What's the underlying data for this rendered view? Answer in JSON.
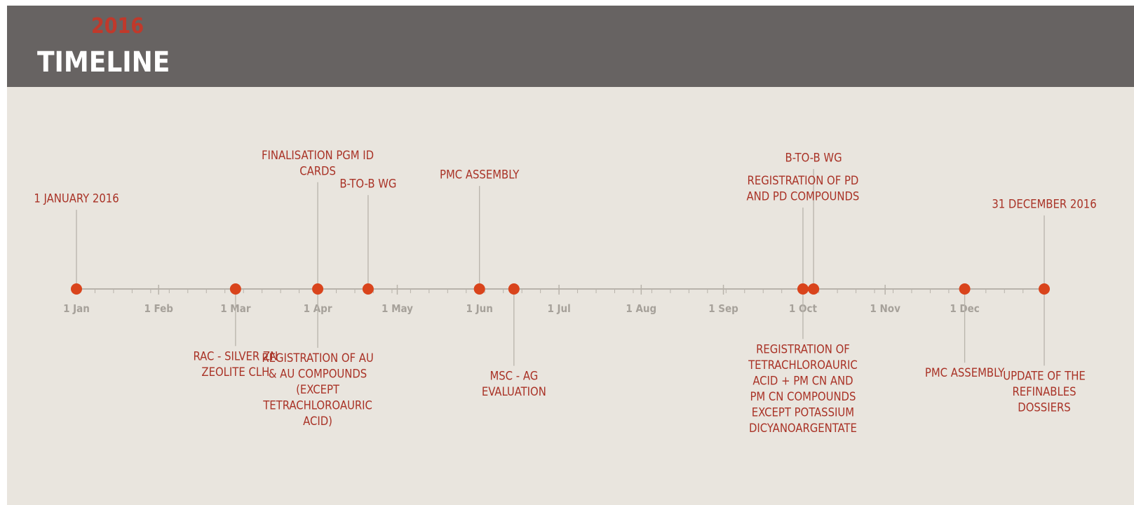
{
  "header": {
    "year": "2016",
    "title": "TIMELINE"
  },
  "colors": {
    "header_bg": "#676362",
    "slide_bg": "#e9e5de",
    "accent": "#d9441c",
    "label": "#a93226",
    "axis": "#b8b3ab",
    "month": "#a6a19a"
  },
  "months": [
    "1 Jan",
    "1 Feb",
    "1 Mar",
    "1 Apr",
    "1 May",
    "1 Jun",
    "1 Jul",
    "1 Aug",
    "1 Sep",
    "1 Oct",
    "1 Nov",
    "1 Dec"
  ],
  "events": [
    {
      "date": "2016-01-01",
      "side": "above",
      "level": 0.4,
      "lines": [
        "1 JANUARY 2016"
      ]
    },
    {
      "date": "2016-03-01",
      "side": "below",
      "level": 0.18,
      "lines": [
        "RAC - SILVER ZN",
        "ZEOLITE CLH"
      ]
    },
    {
      "date": "2016-04-01",
      "side": "above",
      "level": 0.02,
      "lines": [
        "FINALISATION PGM ID",
        "CARDS"
      ]
    },
    {
      "date": "2016-04-01",
      "side": "below",
      "level": 0.38,
      "lines": [
        "REGISTRATION OF AU",
        "& AU COMPOUNDS",
        "(EXCEPT",
        "TETRACHLOROAURIC",
        "ACID)"
      ]
    },
    {
      "date": "2016-04-20",
      "side": "above",
      "level": 0.27,
      "lines": [
        "B-TO-B WG"
      ]
    },
    {
      "date": "2016-06-01",
      "side": "above",
      "level": 0.19,
      "lines": [
        "PMC ASSEMBLY"
      ]
    },
    {
      "date": "2016-06-14",
      "side": "below",
      "level": 0.38,
      "lines": [
        "MSC - AG",
        "EVALUATION"
      ]
    },
    {
      "date": "2016-10-01",
      "side": "above",
      "level": 0.28,
      "lines": [
        "REGISTRATION OF PD",
        "AND PD COMPOUNDS"
      ]
    },
    {
      "date": "2016-10-05",
      "side": "above",
      "level": 0.04,
      "lines": [
        "B-TO-B WG"
      ]
    },
    {
      "date": "2016-10-01",
      "side": "below",
      "level": 0.3,
      "lines": [
        "REGISTRATION OF",
        "TETRACHLOROAURIC",
        "ACID + PM CN AND",
        "PM CN COMPOUNDS",
        "EXCEPT POTASSIUM",
        "DICYANOARGENTATE"
      ]
    },
    {
      "date": "2016-12-01",
      "side": "below",
      "level": 0.3,
      "lines": [
        "PMC ASSEMBLY"
      ]
    },
    {
      "date": "2016-12-31",
      "side": "above",
      "level": 0.45,
      "lines": [
        "31 DECEMBER 2016"
      ]
    },
    {
      "date": "2016-12-31",
      "side": "below",
      "level": 0.45,
      "lines": [
        "UPDATE OF THE",
        "REFINABLES",
        "DOSSIERS"
      ]
    }
  ]
}
